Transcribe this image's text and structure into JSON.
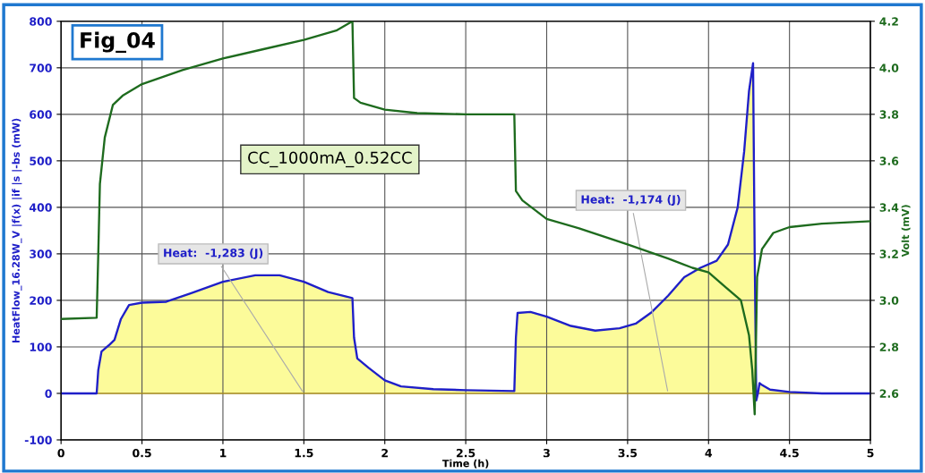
{
  "chart_data": {
    "type": "area",
    "title": "Fig_04",
    "xlabel": "Time (h)",
    "ylabel": "HeatFlow_16.28W_V |f(x) |if |s |-bs (mW)",
    "y2label": "Volt (mV)",
    "annotations": [
      "CC_1000mA_0.52CC",
      {
        "text": "Heat:  -1,283 (J)",
        "x": 1.5,
        "y": 0
      },
      {
        "text": "Heat:  -1,174 (J)",
        "x": 3.75,
        "y": 0
      }
    ],
    "series": [
      {
        "color": "#fcfb9a",
        "x": [
          0,
          0.22,
          0.23,
          0.25,
          0.3,
          0.33,
          0.37,
          0.42,
          0.5,
          0.65,
          0.8,
          1.0,
          1.2,
          1.35,
          1.5,
          1.65,
          1.8,
          1.81,
          1.83,
          1.9,
          2.0,
          2.1,
          2.3,
          2.5,
          2.8,
          2.81,
          2.82,
          2.9,
          3.0,
          3.15,
          3.3,
          3.45,
          3.55,
          3.65,
          3.75,
          3.85,
          3.95,
          4.05,
          4.12,
          4.18,
          4.22,
          4.25,
          4.275,
          4.285,
          4.295,
          4.305,
          4.315,
          4.33,
          4.38,
          4.5,
          4.7,
          5.0
        ],
        "values": [
          0,
          0,
          50,
          90,
          105,
          115,
          160,
          190,
          195,
          197,
          215,
          240,
          254,
          254,
          240,
          218,
          205,
          120,
          75,
          55,
          28,
          15,
          9,
          7,
          5,
          120,
          173,
          175,
          165,
          145,
          135,
          140,
          150,
          175,
          210,
          250,
          270,
          285,
          320,
          400,
          520,
          650,
          710,
          300,
          -15,
          0,
          22,
          18,
          8,
          3,
          0,
          0
        ]
      },
      {
        "type": "line",
        "axis": "y2",
        "color": "#1e6b1e",
        "x": [
          0,
          0.22,
          0.23,
          0.24,
          0.27,
          0.32,
          0.38,
          0.5,
          0.75,
          1.0,
          1.25,
          1.5,
          1.7,
          1.8,
          1.81,
          1.85,
          2.0,
          2.2,
          2.5,
          2.8,
          2.81,
          2.85,
          3.0,
          3.2,
          3.5,
          3.75,
          3.9,
          4.0,
          4.1,
          4.2,
          4.25,
          4.27,
          4.285,
          4.3,
          4.33,
          4.4,
          4.5,
          4.7,
          5.0
        ],
        "values": [
          2.92,
          2.925,
          3.2,
          3.5,
          3.7,
          3.84,
          3.88,
          3.93,
          3.99,
          4.04,
          4.08,
          4.12,
          4.16,
          4.2,
          3.87,
          3.85,
          3.82,
          3.805,
          3.8,
          3.8,
          3.47,
          3.43,
          3.35,
          3.31,
          3.24,
          3.18,
          3.14,
          3.12,
          3.06,
          3.0,
          2.85,
          2.7,
          2.51,
          3.1,
          3.22,
          3.29,
          3.315,
          3.33,
          3.34
        ]
      }
    ],
    "xlim": [
      0,
      5
    ],
    "xticks": [
      0,
      0.5,
      1,
      1.5,
      2,
      2.5,
      3,
      3.5,
      4,
      4.5,
      5
    ],
    "ylim": [
      -100,
      800
    ],
    "yticks": [
      -100,
      0,
      100,
      200,
      300,
      400,
      500,
      600,
      700,
      800
    ],
    "y2lim": [
      2.4,
      4.2
    ],
    "y2ticks": [
      {
        "value": 2.6,
        "label": "2.6"
      },
      {
        "value": 2.8,
        "label": "2.8"
      },
      {
        "value": 3.0,
        "label": "3.0"
      },
      {
        "value": 3.2,
        "label": "3.2"
      },
      {
        "value": 3.4,
        "label": "3.4"
      },
      {
        "value": 3.6,
        "label": "3.6"
      },
      {
        "value": 3.8,
        "label": "3.8"
      },
      {
        "value": 4.0,
        "label": "4.0"
      },
      {
        "value": 4.2,
        "label": "4.2"
      }
    ],
    "grid": true
  }
}
